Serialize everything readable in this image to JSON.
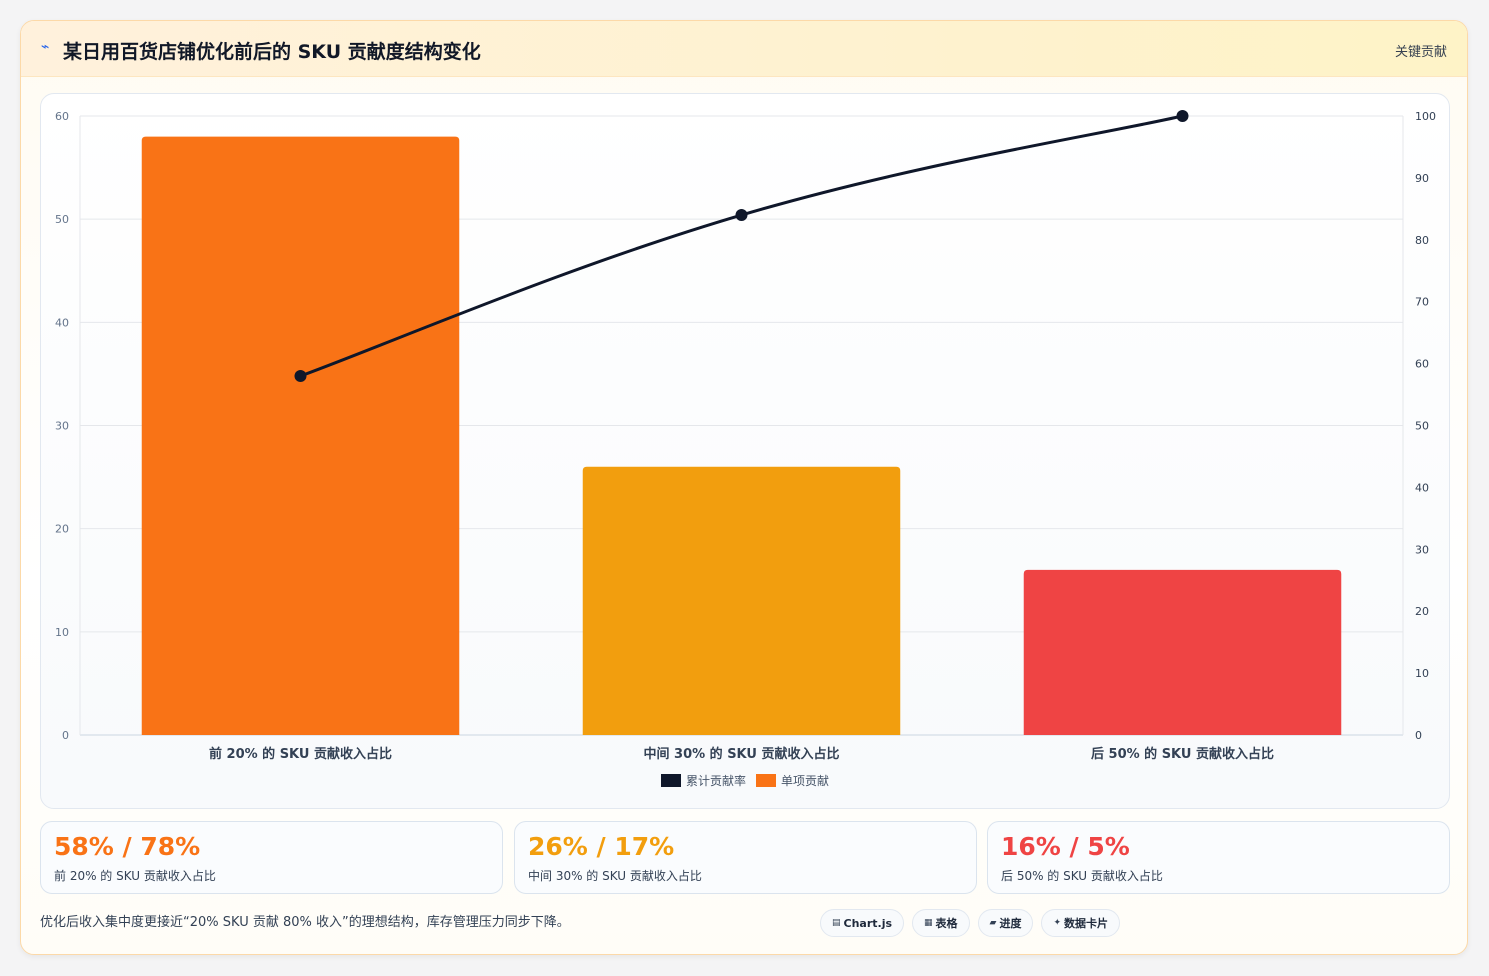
{
  "header": {
    "icon": "chart-line-icon",
    "title": "某日用百货店铺优化前后的 SKU 贡献度结构变化",
    "tag": "关键贡献"
  },
  "chart_data": {
    "type": "bar",
    "categories": [
      "前 20% 的 SKU 贡献收入占比",
      "中间 30% 的 SKU 贡献收入占比",
      "后 50% 的 SKU 贡献收入占比"
    ],
    "series": [
      {
        "name": "单项贡献",
        "type": "bar",
        "axis": "left",
        "values": [
          58,
          26,
          16
        ],
        "colors": [
          "#f97316",
          "#f29e0e",
          "#ef4444"
        ]
      },
      {
        "name": "累计贡献率",
        "type": "line",
        "axis": "right",
        "values": [
          58,
          84,
          100
        ],
        "color": "#0f172a"
      }
    ],
    "y_left": {
      "min": 0,
      "max": 60,
      "ticks": [
        0,
        10,
        20,
        30,
        40,
        50,
        60
      ]
    },
    "y_right": {
      "min": 0,
      "max": 100,
      "ticks": [
        0,
        10,
        20,
        30,
        40,
        50,
        60,
        70,
        80,
        90,
        100
      ]
    },
    "legend": [
      "累计贡献率",
      "单项贡献"
    ],
    "legend_colors": [
      "#0f172a",
      "#f97316"
    ],
    "legend_position": "bottom",
    "grid": true
  },
  "kpis": [
    {
      "value": "58% / 78%",
      "label": "前 20% 的 SKU 贡献收入占比",
      "color": "#f97316"
    },
    {
      "value": "26% / 17%",
      "label": "中间 30% 的 SKU 贡献收入占比",
      "color": "#f29e0e"
    },
    {
      "value": "16% / 5%",
      "label": "后 50% 的 SKU 贡献收入占比",
      "color": "#ef4444"
    }
  ],
  "footer": {
    "note": "优化后收入集中度更接近“20% SKU 贡献 80% 收入”的理想结构，库存管理压力同步下降。",
    "chips": [
      {
        "icon": "▤",
        "label": "Chart.js"
      },
      {
        "icon": "▦",
        "label": "表格"
      },
      {
        "icon": "▰",
        "label": "进度"
      },
      {
        "icon": "✦",
        "label": "数据卡片"
      }
    ]
  }
}
